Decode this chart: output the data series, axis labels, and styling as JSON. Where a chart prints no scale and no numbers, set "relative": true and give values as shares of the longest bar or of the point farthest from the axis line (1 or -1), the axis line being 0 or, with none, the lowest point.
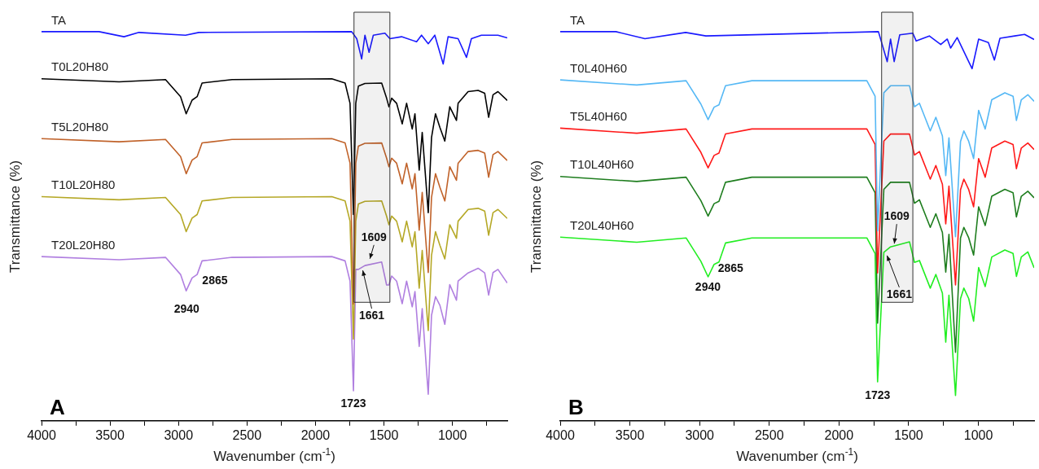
{
  "chart_data": [
    {
      "type": "line",
      "relative": true,
      "legend": false,
      "marker": "none",
      "xlabel": "Wavenumber (cm$^{-1}$)",
      "ylabel": "Transmittance (%)",
      "xlim": [
        4000,
        600
      ],
      "xticks": [
        4000,
        {
          "value": 3750,
          "label": null
        },
        3500,
        {
          "value": 3250,
          "label": null
        },
        3000,
        {
          "value": 2750,
          "label": null
        },
        2500,
        {
          "value": 2250,
          "label": null
        },
        2000,
        {
          "value": 1750,
          "label": null
        },
        1500,
        {
          "value": 1250,
          "label": null
        },
        1000,
        {
          "value": 750,
          "label": null
        }
      ],
      "x": [
        4000,
        3434,
        3095,
        2985,
        2944,
        2901,
        2864,
        2828,
        2609,
        1881,
        1784,
        1748,
        1723,
        1706,
        1687,
        1639,
        1517,
        1481,
        1464,
        1444,
        1408,
        1367,
        1335,
        1294,
        1274,
        1243,
        1221,
        1177,
        1153,
        1124,
        1092,
        1056,
        1020,
        971,
        959,
        886,
        813,
        765,
        736,
        704,
        668,
        600
      ],
      "bands": [
        {
          "axis": "x",
          "from": 1719,
          "to": 1457,
          "color": "#333333"
        }
      ],
      "series": [
        {
          "name": "TA",
          "color": "#1a1aff",
          "x": [
            4000,
            3580,
            3398,
            3289,
            2949,
            2852,
            1736,
            1699,
            1663,
            1639,
            1609,
            1578,
            1493,
            1457,
            1372,
            1262,
            1226,
            1177,
            1129,
            1068,
            1032,
            959,
            898,
            862,
            789,
            668,
            600
          ],
          "values": [
            1.0,
            1.0,
            0.987,
            0.998,
            0.991,
            0.998,
            1.0,
            0.982,
            0.93,
            0.991,
            0.947,
            0.991,
            0.996,
            0.982,
            0.987,
            0.974,
            0.991,
            0.969,
            0.991,
            0.917,
            0.987,
            0.982,
            0.934,
            0.982,
            0.991,
            0.991,
            0.984
          ]
        },
        {
          "name": "T0L20H80",
          "color": "#000000",
          "values": [
            0.879,
            0.871,
            0.877,
            0.833,
            0.789,
            0.824,
            0.833,
            0.868,
            0.877,
            0.879,
            0.868,
            0.816,
            0.53,
            0.816,
            0.86,
            0.867,
            0.868,
            0.829,
            0.807,
            0.829,
            0.816,
            0.763,
            0.816,
            0.75,
            0.789,
            0.644,
            0.741,
            0.535,
            0.728,
            0.789,
            0.754,
            0.719,
            0.807,
            0.772,
            0.816,
            0.846,
            0.849,
            0.842,
            0.78,
            0.838,
            0.846,
            0.823
          ]
        },
        {
          "name": "T5L20H80",
          "color": "#c0622a",
          "values": [
            0.725,
            0.717,
            0.723,
            0.679,
            0.635,
            0.67,
            0.679,
            0.714,
            0.723,
            0.725,
            0.714,
            0.662,
            0.3,
            0.662,
            0.706,
            0.713,
            0.714,
            0.675,
            0.653,
            0.675,
            0.662,
            0.609,
            0.662,
            0.596,
            0.635,
            0.49,
            0.587,
            0.381,
            0.574,
            0.635,
            0.6,
            0.565,
            0.653,
            0.618,
            0.662,
            0.692,
            0.695,
            0.688,
            0.626,
            0.684,
            0.692,
            0.669
          ]
        },
        {
          "name": "T10L20H80",
          "color": "#b5a826",
          "values": [
            0.576,
            0.568,
            0.574,
            0.53,
            0.486,
            0.521,
            0.53,
            0.565,
            0.574,
            0.576,
            0.565,
            0.513,
            0.21,
            0.513,
            0.557,
            0.564,
            0.565,
            0.526,
            0.504,
            0.526,
            0.513,
            0.46,
            0.513,
            0.447,
            0.486,
            0.341,
            0.438,
            0.232,
            0.425,
            0.486,
            0.451,
            0.416,
            0.504,
            0.469,
            0.513,
            0.543,
            0.546,
            0.539,
            0.477,
            0.535,
            0.543,
            0.52
          ]
        },
        {
          "name": "T20L20H80",
          "color": "#b07fe0",
          "values": [
            0.422,
            0.414,
            0.42,
            0.376,
            0.334,
            0.367,
            0.376,
            0.411,
            0.42,
            0.422,
            0.411,
            0.359,
            0.077,
            0.389,
            0.389,
            0.399,
            0.408,
            0.349,
            0.349,
            0.372,
            0.359,
            0.301,
            0.359,
            0.293,
            0.332,
            0.191,
            0.288,
            0.068,
            0.271,
            0.319,
            0.297,
            0.248,
            0.35,
            0.31,
            0.359,
            0.38,
            0.392,
            0.38,
            0.323,
            0.381,
            0.389,
            0.354
          ]
        }
      ],
      "annotations": [
        {
          "text": "2940",
          "x": 2940,
          "y": 0.334
        },
        {
          "text": "2865",
          "x": 2865,
          "y": 0.376
        },
        {
          "text": "1723",
          "x": 1723,
          "y": 0.077
        },
        {
          "text": "1609",
          "x": 1609,
          "y": 0.408
        },
        {
          "text": "1661",
          "x": 1661,
          "y": 0.395
        },
        "A"
      ]
    },
    {
      "type": "line",
      "relative": true,
      "legend": false,
      "marker": "none",
      "xlabel": "Wavenumber (cm$^{-1}$)",
      "ylabel": "Transmittance (%)",
      "xlim": [
        4000,
        600
      ],
      "xticks": [
        4000,
        {
          "value": 3750,
          "label": null
        },
        3500,
        {
          "value": 3250,
          "label": null
        },
        3000,
        {
          "value": 2750,
          "label": null
        },
        2500,
        {
          "value": 2250,
          "label": null
        },
        2000,
        {
          "value": 1750,
          "label": null
        },
        1500,
        {
          "value": 1250,
          "label": null
        },
        1000,
        {
          "value": 750,
          "label": null
        }
      ],
      "x": [
        4000,
        3451,
        3097,
        2991,
        2939,
        2896,
        2861,
        2814,
        2625,
        1800,
        1741,
        1723,
        1678,
        1630,
        1494,
        1458,
        1423,
        1345,
        1305,
        1258,
        1234,
        1211,
        1164,
        1128,
        1104,
        1069,
        1034,
        998,
        951,
        904,
        810,
        751,
        727,
        692,
        645,
        600
      ],
      "bands": [
        {
          "axis": "x",
          "from": 1694,
          "to": 1470,
          "color": "#333333"
        }
      ],
      "series": [
        {
          "name": "TA",
          "color": "#1a1aff",
          "x": [
            4000,
            3600,
            3392,
            3100,
            2955,
            1717,
            1654,
            1630,
            1604,
            1564,
            1470,
            1446,
            1352,
            1270,
            1223,
            1199,
            1152,
            1045,
            998,
            928,
            885,
            845,
            739,
            668,
            600
          ],
          "values": [
            1.0,
            1.0,
            0.982,
            0.998,
            0.989,
            1.0,
            0.923,
            0.981,
            0.923,
            0.992,
            0.996,
            0.976,
            0.989,
            0.967,
            0.981,
            0.958,
            0.985,
            0.905,
            0.981,
            0.972,
            0.927,
            0.983,
            0.989,
            0.993,
            0.98
          ]
        },
        {
          "name": "T0L40H60",
          "color": "#55b8f5",
          "values": [
            0.876,
            0.863,
            0.874,
            0.814,
            0.774,
            0.806,
            0.812,
            0.861,
            0.874,
            0.874,
            0.834,
            0.488,
            0.843,
            0.861,
            0.861,
            0.807,
            0.816,
            0.745,
            0.78,
            0.732,
            0.63,
            0.727,
            0.473,
            0.718,
            0.745,
            0.718,
            0.674,
            0.798,
            0.75,
            0.825,
            0.843,
            0.834,
            0.772,
            0.825,
            0.838,
            0.821
          ]
        },
        {
          "name": "T5L40H60",
          "color": "#ff1a1a",
          "values": [
            0.752,
            0.739,
            0.75,
            0.69,
            0.65,
            0.682,
            0.688,
            0.737,
            0.75,
            0.75,
            0.71,
            0.38,
            0.719,
            0.737,
            0.737,
            0.683,
            0.692,
            0.621,
            0.656,
            0.608,
            0.506,
            0.603,
            0.349,
            0.594,
            0.621,
            0.594,
            0.55,
            0.674,
            0.626,
            0.701,
            0.719,
            0.71,
            0.648,
            0.701,
            0.714,
            0.697
          ]
        },
        {
          "name": "T10L40H60",
          "color": "#1e7d1e",
          "values": [
            0.628,
            0.615,
            0.626,
            0.566,
            0.526,
            0.558,
            0.564,
            0.613,
            0.626,
            0.626,
            0.586,
            0.251,
            0.595,
            0.613,
            0.613,
            0.559,
            0.568,
            0.497,
            0.532,
            0.484,
            0.382,
            0.479,
            0.176,
            0.47,
            0.497,
            0.47,
            0.426,
            0.55,
            0.502,
            0.577,
            0.595,
            0.586,
            0.524,
            0.577,
            0.59,
            0.573
          ]
        },
        {
          "name": "T20L40H60",
          "color": "#22ee22",
          "values": [
            0.472,
            0.459,
            0.47,
            0.41,
            0.37,
            0.402,
            0.408,
            0.457,
            0.47,
            0.47,
            0.43,
            0.1,
            0.433,
            0.447,
            0.46,
            0.407,
            0.412,
            0.341,
            0.376,
            0.328,
            0.202,
            0.323,
            0.065,
            0.314,
            0.341,
            0.314,
            0.256,
            0.394,
            0.345,
            0.421,
            0.439,
            0.43,
            0.371,
            0.421,
            0.434,
            0.393
          ]
        }
      ],
      "annotations": [
        {
          "text": "2940",
          "x": 2940,
          "y": 0.37
        },
        {
          "text": "2865",
          "x": 2865,
          "y": 0.408
        },
        {
          "text": "1723",
          "x": 1723,
          "y": 0.1
        },
        {
          "text": "1609",
          "x": 1609,
          "y": 0.447
        },
        {
          "text": "1661",
          "x": 1661,
          "y": 0.433
        },
        "B"
      ]
    }
  ]
}
